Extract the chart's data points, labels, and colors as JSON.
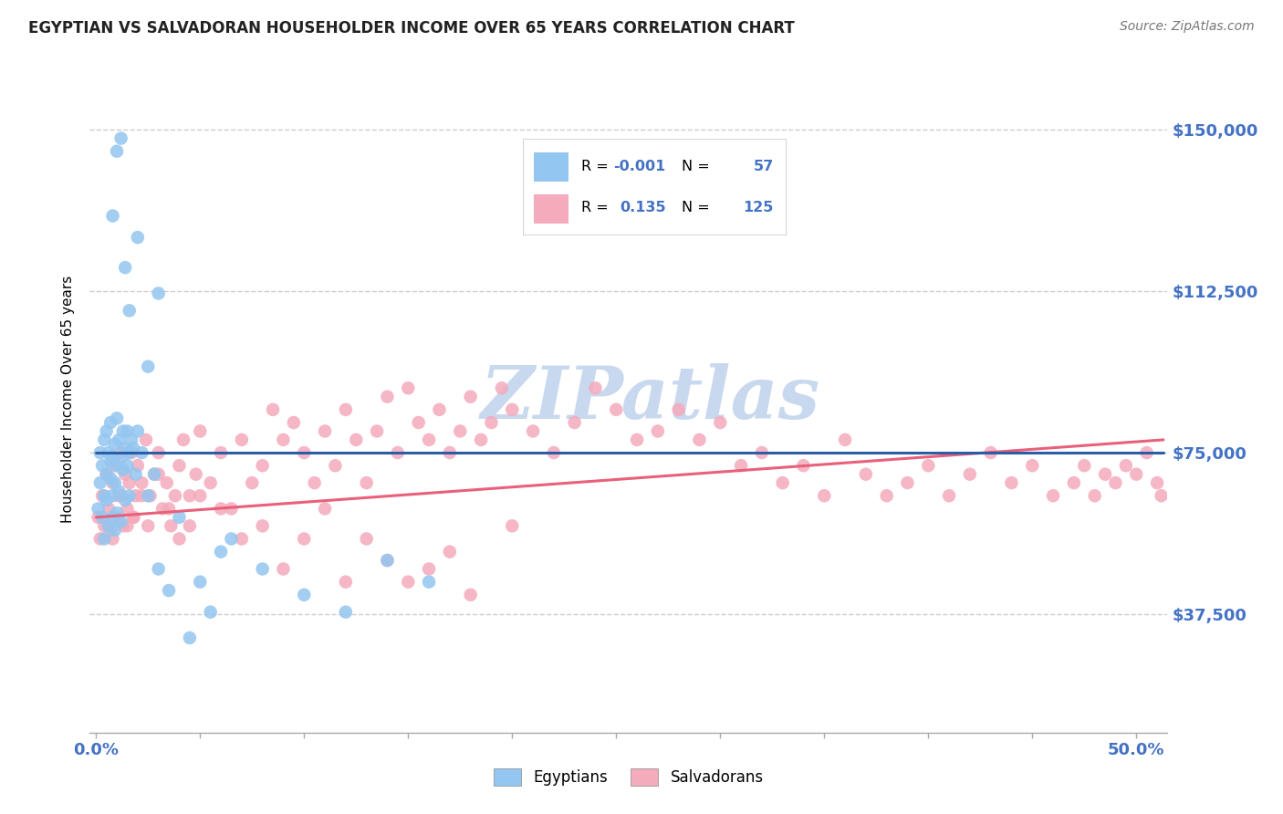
{
  "title": "EGYPTIAN VS SALVADORAN HOUSEHOLDER INCOME OVER 65 YEARS CORRELATION CHART",
  "source": "Source: ZipAtlas.com",
  "ylabel": "Householder Income Over 65 years",
  "ytick_labels": [
    "$37,500",
    "$75,000",
    "$112,500",
    "$150,000"
  ],
  "ytick_values": [
    37500,
    75000,
    112500,
    150000
  ],
  "xlim": [
    -0.003,
    0.515
  ],
  "ylim": [
    10000,
    165000
  ],
  "legend_r_egyptian": "-0.001",
  "legend_n_egyptian": "57",
  "legend_r_salvadoran": "0.135",
  "legend_n_salvadoran": "125",
  "color_egyptian": "#93C6F0",
  "color_salvadoran": "#F4ABBC",
  "color_egyptian_line": "#2B5EA7",
  "color_salvadoran_line": "#E8607A",
  "color_right_labels": "#4472C4",
  "watermark_color": "#C8D8EE",
  "egyptians_scatter_x": [
    0.001,
    0.002,
    0.002,
    0.003,
    0.003,
    0.004,
    0.004,
    0.004,
    0.005,
    0.005,
    0.005,
    0.006,
    0.006,
    0.007,
    0.007,
    0.007,
    0.008,
    0.008,
    0.008,
    0.009,
    0.009,
    0.009,
    0.01,
    0.01,
    0.01,
    0.011,
    0.011,
    0.012,
    0.012,
    0.013,
    0.013,
    0.014,
    0.014,
    0.015,
    0.015,
    0.016,
    0.016,
    0.017,
    0.018,
    0.019,
    0.02,
    0.022,
    0.025,
    0.028,
    0.03,
    0.035,
    0.04,
    0.045,
    0.05,
    0.055,
    0.06,
    0.065,
    0.08,
    0.1,
    0.12,
    0.14,
    0.16
  ],
  "egyptians_scatter_y": [
    62000,
    75000,
    68000,
    72000,
    60000,
    65000,
    78000,
    55000,
    80000,
    70000,
    64000,
    75000,
    58000,
    82000,
    69000,
    73000,
    65000,
    74000,
    60000,
    77000,
    68000,
    57000,
    83000,
    72000,
    61000,
    78000,
    66000,
    74000,
    59000,
    80000,
    71000,
    76000,
    64000,
    72000,
    80000,
    65000,
    75000,
    78000,
    76000,
    70000,
    80000,
    75000,
    65000,
    70000,
    48000,
    43000,
    60000,
    32000,
    45000,
    38000,
    52000,
    55000,
    48000,
    42000,
    38000,
    50000,
    45000
  ],
  "egyptians_scatter_y_high": [
    130000,
    145000,
    148000,
    118000,
    108000,
    125000,
    95000,
    112000
  ],
  "egyptians_scatter_x_high": [
    0.008,
    0.01,
    0.012,
    0.014,
    0.016,
    0.02,
    0.025,
    0.03
  ],
  "salvadorans_scatter_x": [
    0.001,
    0.002,
    0.003,
    0.004,
    0.005,
    0.006,
    0.007,
    0.008,
    0.009,
    0.01,
    0.011,
    0.012,
    0.013,
    0.014,
    0.015,
    0.016,
    0.017,
    0.018,
    0.019,
    0.02,
    0.022,
    0.024,
    0.026,
    0.028,
    0.03,
    0.032,
    0.034,
    0.036,
    0.038,
    0.04,
    0.042,
    0.045,
    0.048,
    0.05,
    0.055,
    0.06,
    0.065,
    0.07,
    0.075,
    0.08,
    0.085,
    0.09,
    0.095,
    0.1,
    0.105,
    0.11,
    0.115,
    0.12,
    0.125,
    0.13,
    0.135,
    0.14,
    0.145,
    0.15,
    0.155,
    0.16,
    0.165,
    0.17,
    0.175,
    0.18,
    0.185,
    0.19,
    0.195,
    0.2,
    0.21,
    0.22,
    0.23,
    0.24,
    0.25,
    0.26,
    0.27,
    0.28,
    0.29,
    0.3,
    0.31,
    0.32,
    0.33,
    0.34,
    0.35,
    0.36,
    0.37,
    0.38,
    0.39,
    0.4,
    0.41,
    0.42,
    0.43,
    0.44,
    0.45,
    0.46,
    0.47,
    0.475,
    0.48,
    0.485,
    0.49,
    0.495,
    0.5,
    0.505,
    0.51,
    0.512,
    0.008,
    0.012,
    0.015,
    0.018,
    0.022,
    0.025,
    0.03,
    0.035,
    0.04,
    0.045,
    0.05,
    0.06,
    0.07,
    0.08,
    0.09,
    0.1,
    0.11,
    0.12,
    0.13,
    0.14,
    0.15,
    0.16,
    0.17,
    0.18,
    0.2
  ],
  "salvadorans_scatter_y": [
    60000,
    55000,
    65000,
    58000,
    70000,
    62000,
    57000,
    68000,
    72000,
    60000,
    65000,
    75000,
    58000,
    70000,
    62000,
    68000,
    75000,
    60000,
    65000,
    72000,
    68000,
    78000,
    65000,
    70000,
    75000,
    62000,
    68000,
    58000,
    65000,
    72000,
    78000,
    65000,
    70000,
    80000,
    68000,
    75000,
    62000,
    78000,
    68000,
    72000,
    85000,
    78000,
    82000,
    75000,
    68000,
    80000,
    72000,
    85000,
    78000,
    68000,
    80000,
    88000,
    75000,
    90000,
    82000,
    78000,
    85000,
    75000,
    80000,
    88000,
    78000,
    82000,
    90000,
    85000,
    80000,
    75000,
    82000,
    90000,
    85000,
    78000,
    80000,
    85000,
    78000,
    82000,
    72000,
    75000,
    68000,
    72000,
    65000,
    78000,
    70000,
    65000,
    68000,
    72000,
    65000,
    70000,
    75000,
    68000,
    72000,
    65000,
    68000,
    72000,
    65000,
    70000,
    68000,
    72000,
    70000,
    75000,
    68000,
    65000,
    55000,
    65000,
    58000,
    60000,
    65000,
    58000,
    70000,
    62000,
    55000,
    58000,
    65000,
    62000,
    55000,
    58000,
    48000,
    55000,
    62000,
    45000,
    55000,
    50000,
    45000,
    48000,
    52000,
    42000,
    58000
  ]
}
